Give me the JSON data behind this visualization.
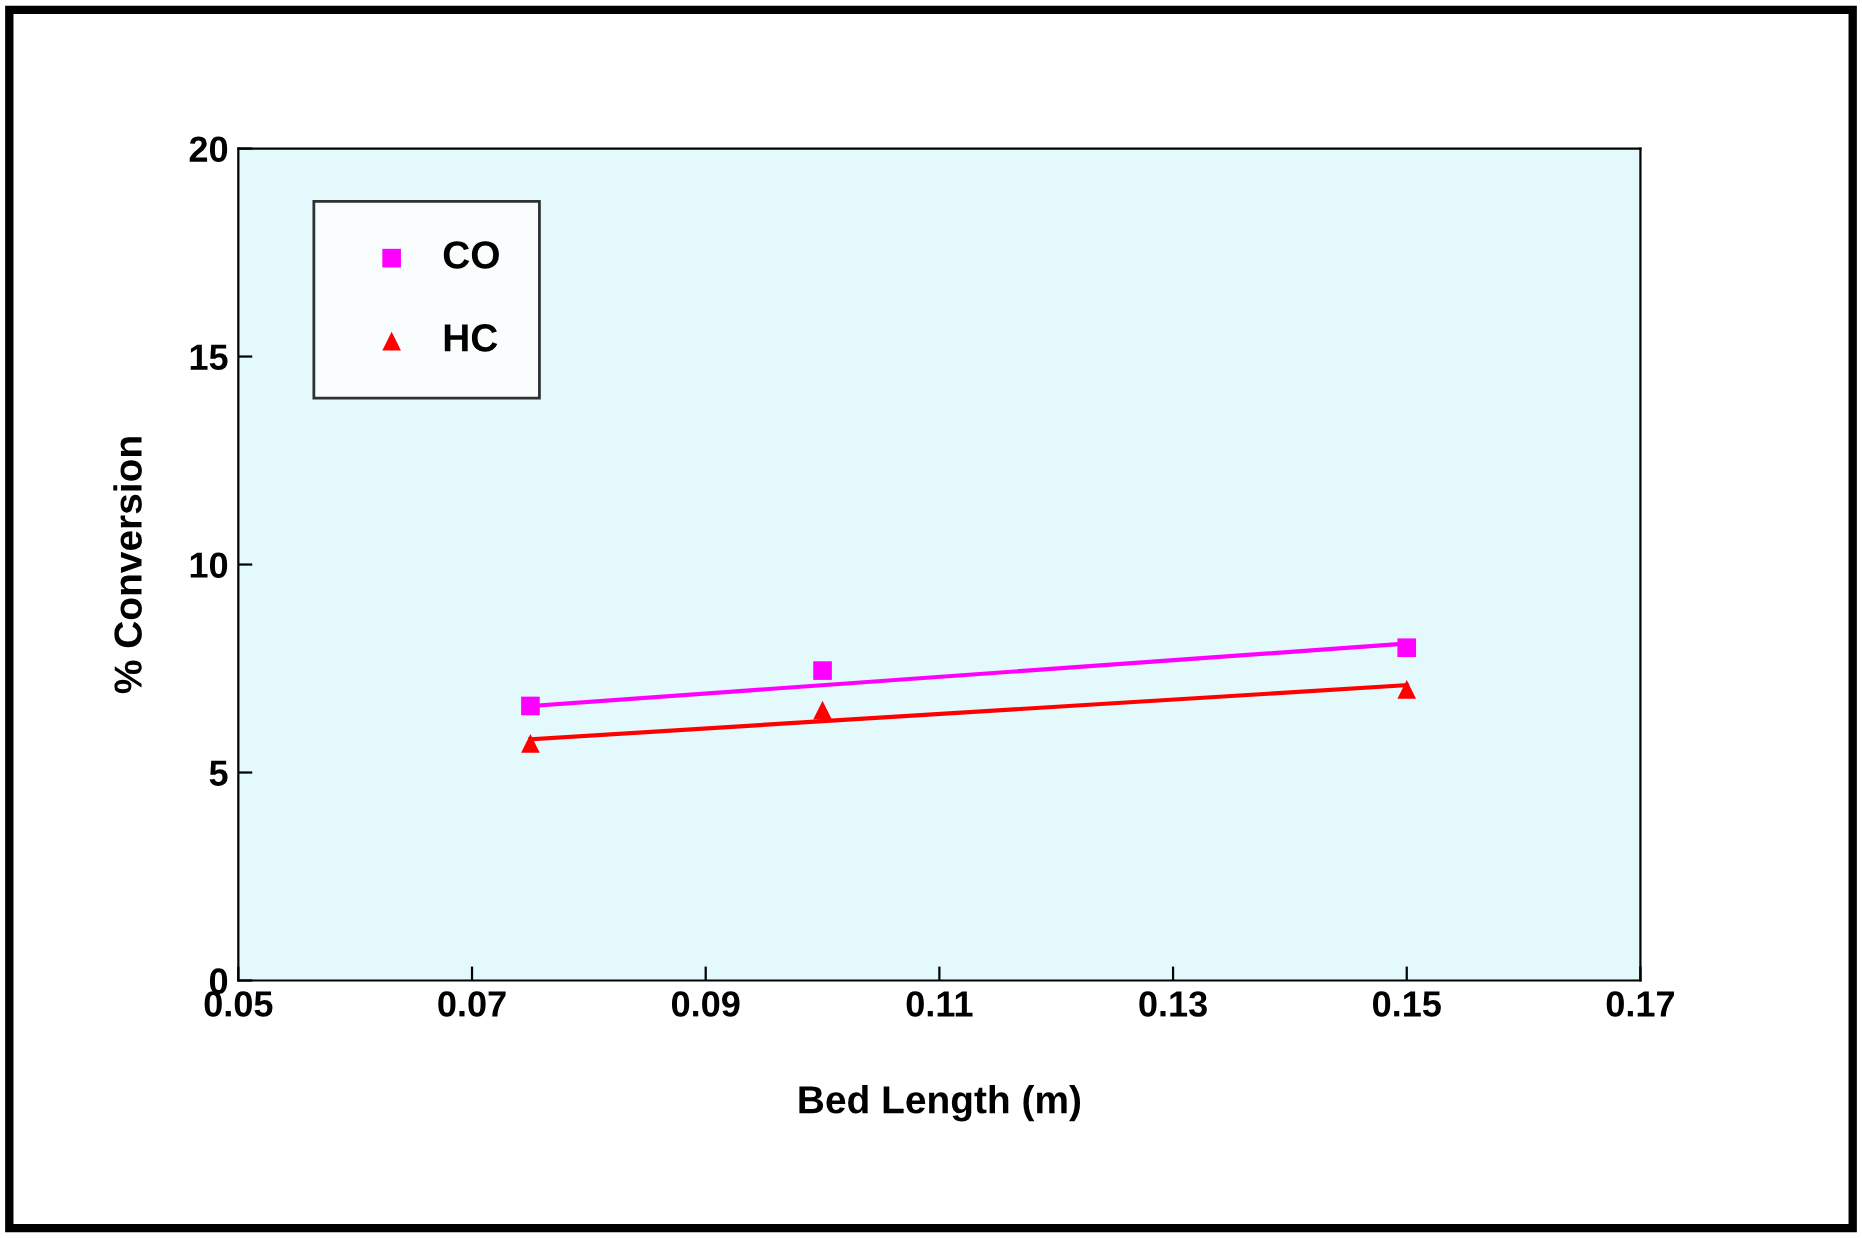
{
  "chart_data": {
    "type": "scatter",
    "xlabel": "Bed Length (m)",
    "ylabel": "% Conversion",
    "xlim": [
      0.05,
      0.17
    ],
    "xticks": [
      0.05,
      0.07,
      0.09,
      0.11,
      0.13,
      0.15,
      0.17
    ],
    "ylim": [
      0,
      20
    ],
    "yticks": [
      0,
      5,
      10,
      15,
      20
    ],
    "grid": false,
    "legend": "top left",
    "series": [
      {
        "name": "CO",
        "color": "#ff00ff",
        "marker": "square",
        "x": [
          0.075,
          0.1,
          0.15
        ],
        "values": [
          6.6,
          7.45,
          8.0
        ]
      },
      {
        "name": "HC",
        "color": "#ff0000",
        "marker": "triangle",
        "x": [
          0.075,
          0.1,
          0.15
        ],
        "values": [
          5.7,
          6.5,
          7.0
        ]
      },
      {
        "type": "line",
        "color": "#ff00ff",
        "marker": "none",
        "x": [
          0.075,
          0.15
        ],
        "values": [
          6.6,
          8.1
        ]
      },
      {
        "type": "line",
        "color": "#ff0000",
        "marker": "none",
        "x": [
          0.075,
          0.15
        ],
        "values": [
          5.8,
          7.1
        ]
      }
    ]
  }
}
